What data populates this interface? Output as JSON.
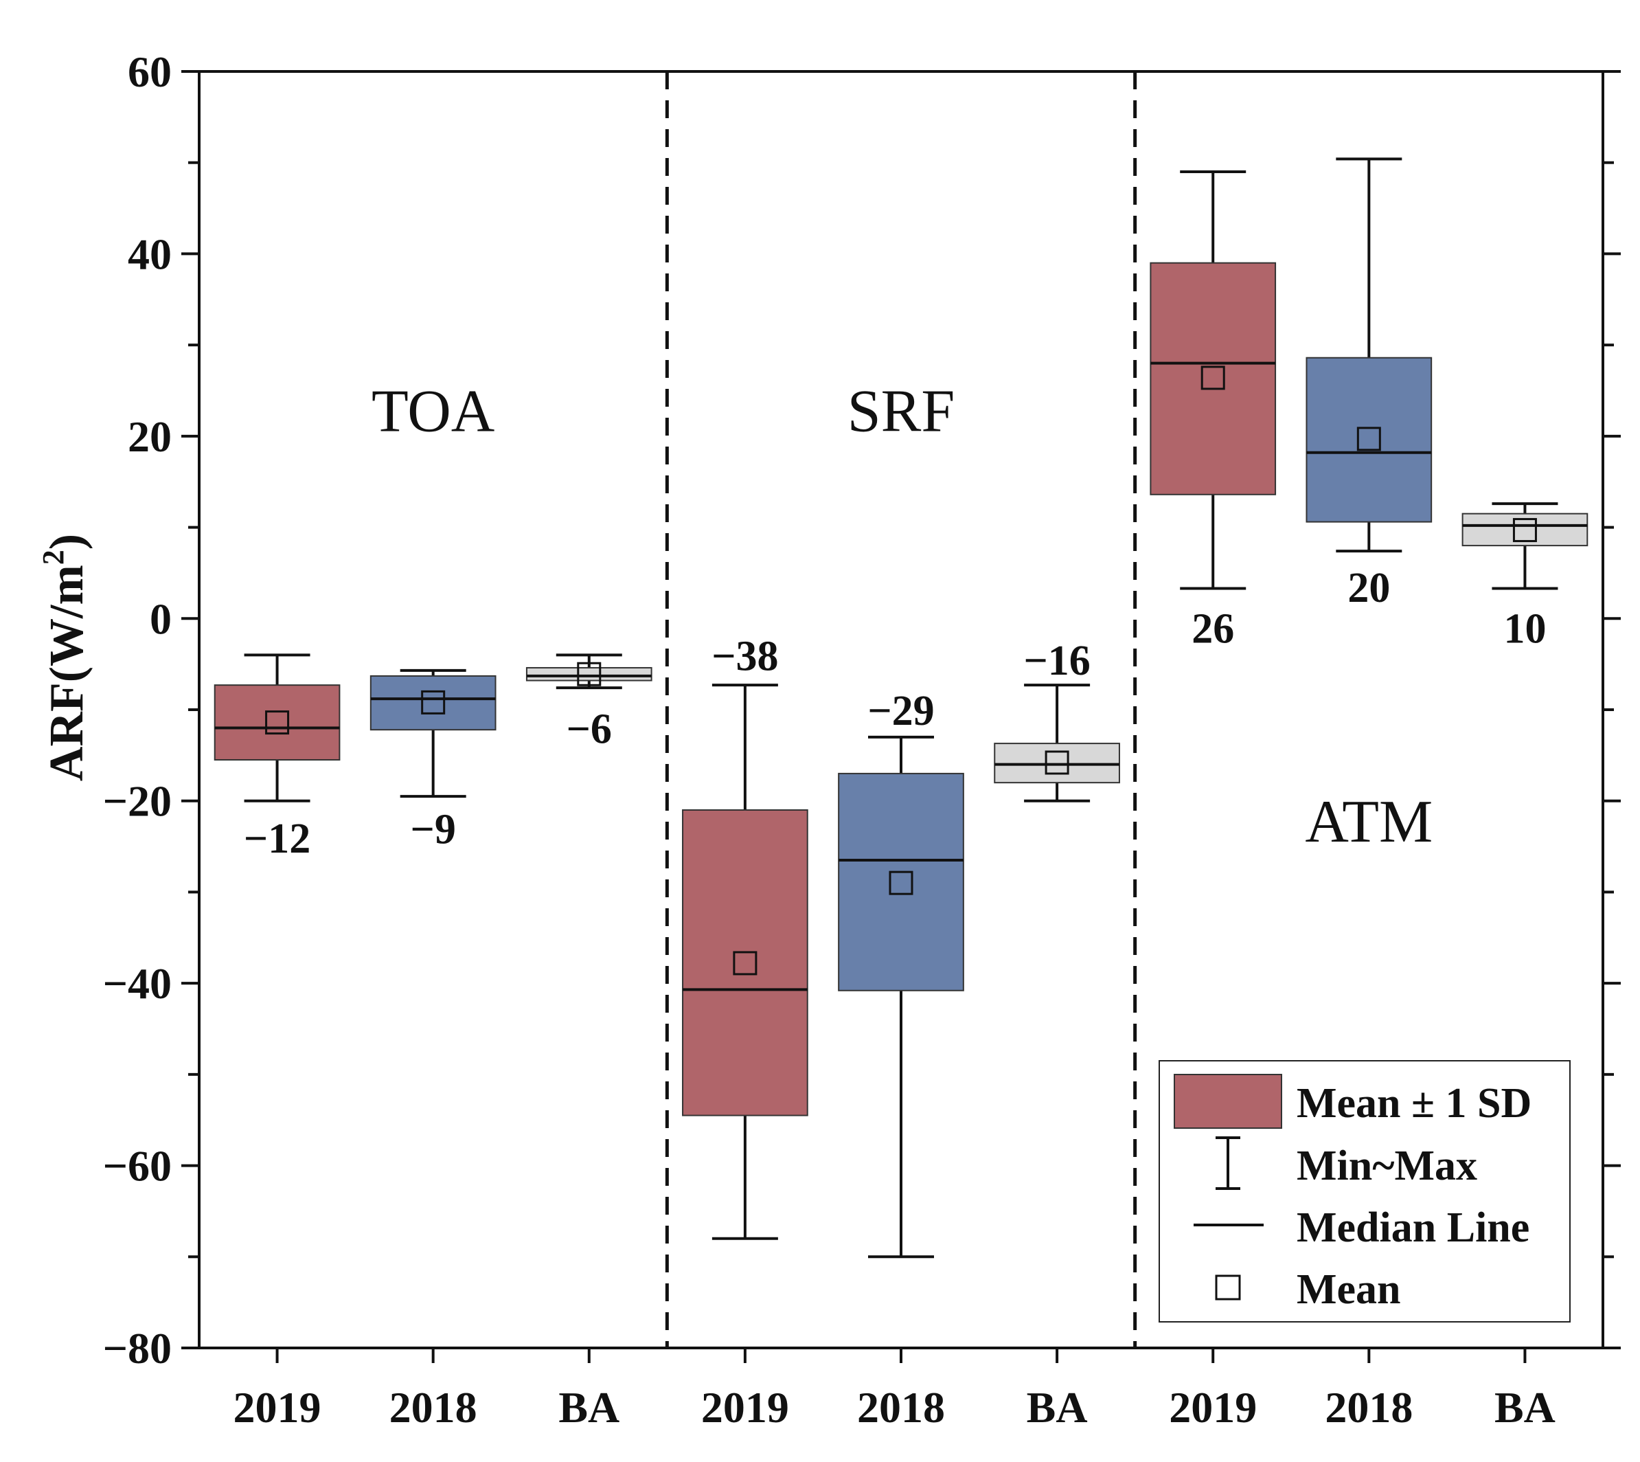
{
  "chart_data": {
    "type": "box",
    "title": "",
    "ylabel": "ARF(W/m",
    "ylabel_sup": "2",
    "ylabel_close": ")",
    "ylim": [
      -80,
      60
    ],
    "yticks": [
      60,
      40,
      20,
      0,
      -20,
      -40,
      -60,
      -80
    ],
    "ytick_labels": [
      "60",
      "40",
      "20",
      "0",
      "−20",
      "−40",
      "−60",
      "−80"
    ],
    "groups": [
      {
        "name": "TOA",
        "label_y": 22.5
      },
      {
        "name": "SRF",
        "label_y": 22.5
      },
      {
        "name": "ATM",
        "label_y": -22.5
      }
    ],
    "colors": {
      "2019": "#b0656a",
      "2018": "#6880aa",
      "BA": "#d8d8d8"
    },
    "boxes": [
      {
        "group": "TOA",
        "category": "2019",
        "min": -20,
        "q1": -15.5,
        "median": -12,
        "mean": -11.4,
        "q3": -7.3,
        "max": -4,
        "label": "−12",
        "label_y": -24
      },
      {
        "group": "TOA",
        "category": "2018",
        "min": -19.5,
        "q1": -12.2,
        "median": -8.8,
        "mean": -9.2,
        "q3": -6.3,
        "max": -5.7,
        "label": "−9",
        "label_y": -23
      },
      {
        "group": "TOA",
        "category": "BA",
        "min": -7.6,
        "q1": -6.8,
        "median": -6.3,
        "mean": -6.1,
        "q3": -5.4,
        "max": -4,
        "label": "−6",
        "label_y": -12
      },
      {
        "group": "SRF",
        "category": "2019",
        "min": -68,
        "q1": -54.5,
        "median": -40.7,
        "mean": -37.8,
        "q3": -21,
        "max": -7.3,
        "label": "−38",
        "label_y": -4
      },
      {
        "group": "SRF",
        "category": "2018",
        "min": -70,
        "q1": -40.8,
        "median": -26.5,
        "mean": -29,
        "q3": -17,
        "max": -13,
        "label": "−29",
        "label_y": -10
      },
      {
        "group": "SRF",
        "category": "BA",
        "min": -20,
        "q1": -18,
        "median": -16,
        "mean": -15.8,
        "q3": -13.7,
        "max": -7.3,
        "label": "−16",
        "label_y": -4.5
      },
      {
        "group": "ATM",
        "category": "2019",
        "min": 3.3,
        "q1": 13.6,
        "median": 28,
        "mean": 26.4,
        "q3": 39,
        "max": 49,
        "label": "26",
        "label_y": -1
      },
      {
        "group": "ATM",
        "category": "2018",
        "min": 7.4,
        "q1": 10.6,
        "median": 18.2,
        "mean": 19.7,
        "q3": 28.6,
        "max": 50.4,
        "label": "20",
        "label_y": 3.5
      },
      {
        "group": "ATM",
        "category": "BA",
        "min": 3.3,
        "q1": 8,
        "median": 10.2,
        "mean": 9.7,
        "q3": 11.5,
        "max": 12.6,
        "label": "10",
        "label_y": -1
      }
    ],
    "legend": {
      "position": "bottom-right",
      "items": [
        {
          "name": "box-sd",
          "label": "Mean ± 1 SD"
        },
        {
          "name": "whisker",
          "label": "Min~Max"
        },
        {
          "name": "median",
          "label": "Median Line"
        },
        {
          "name": "mean",
          "label": "Mean"
        }
      ]
    }
  }
}
